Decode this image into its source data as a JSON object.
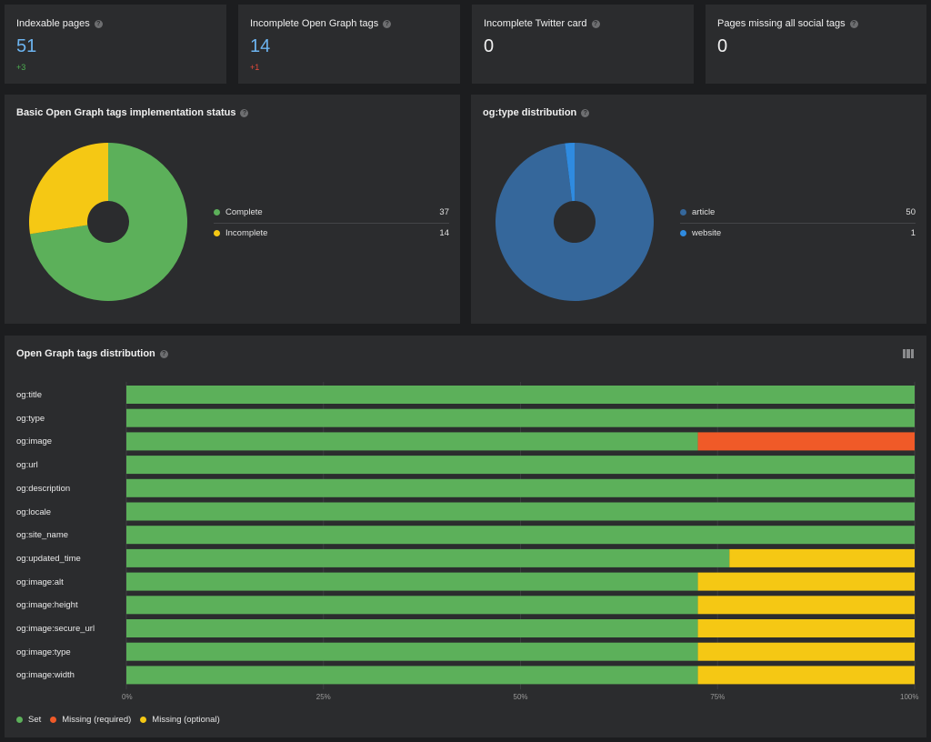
{
  "colors": {
    "green": "#5cb05a",
    "yellow": "#f5c814",
    "red": "#f05a28",
    "blue_dark": "#35679b",
    "blue_light": "#2f8be0",
    "kpi_blue": "#6cb4f0",
    "delta_green": "#4caf50",
    "delta_red": "#e84a3a"
  },
  "kpis": [
    {
      "title": "Indexable pages",
      "value": "51",
      "delta": "+3",
      "value_color": "#6cb4f0",
      "delta_color": "#4caf50"
    },
    {
      "title": "Incomplete Open Graph tags",
      "value": "14",
      "delta": "+1",
      "value_color": "#6cb4f0",
      "delta_color": "#e84a3a"
    },
    {
      "title": "Incomplete Twitter card",
      "value": "0",
      "delta": "",
      "value_color": "#f0f0f0",
      "delta_color": "#4caf50"
    },
    {
      "title": "Pages missing all social tags",
      "value": "0",
      "delta": "",
      "value_color": "#f0f0f0",
      "delta_color": "#4caf50"
    }
  ],
  "chart_data": [
    {
      "type": "pie",
      "title": "Basic Open Graph tags implementation status",
      "categories": [
        "Complete",
        "Incomplete"
      ],
      "values": [
        37,
        14
      ],
      "colors": [
        "#5cb05a",
        "#f5c814"
      ]
    },
    {
      "type": "pie",
      "title": "og:type distribution",
      "categories": [
        "article",
        "website"
      ],
      "values": [
        50,
        1
      ],
      "colors": [
        "#35679b",
        "#2f8be0"
      ]
    },
    {
      "type": "bar",
      "orientation": "horizontal",
      "stacked": true,
      "title": "Open Graph tags distribution",
      "categories": [
        "og:title",
        "og:type",
        "og:image",
        "og:url",
        "og:description",
        "og:locale",
        "og:site_name",
        "og:updated_time",
        "og:image:alt",
        "og:image:height",
        "og:image:secure_url",
        "og:image:type",
        "og:image:width"
      ],
      "series": [
        {
          "name": "Set",
          "color": "#5cb05a",
          "values": [
            100,
            100,
            72.5,
            100,
            100,
            100,
            100,
            76.5,
            72.5,
            72.5,
            72.5,
            72.5,
            72.5
          ]
        },
        {
          "name": "Missing (required)",
          "color": "#f05a28",
          "values": [
            0,
            0,
            27.5,
            0,
            0,
            0,
            0,
            0,
            0,
            0,
            0,
            0,
            0
          ]
        },
        {
          "name": "Missing (optional)",
          "color": "#f5c814",
          "values": [
            0,
            0,
            0,
            0,
            0,
            0,
            0,
            23.5,
            27.5,
            27.5,
            27.5,
            27.5,
            27.5
          ]
        }
      ],
      "xticks": [
        "0%",
        "25%",
        "50%",
        "75%",
        "100%"
      ],
      "xlim": [
        0,
        100
      ]
    }
  ]
}
